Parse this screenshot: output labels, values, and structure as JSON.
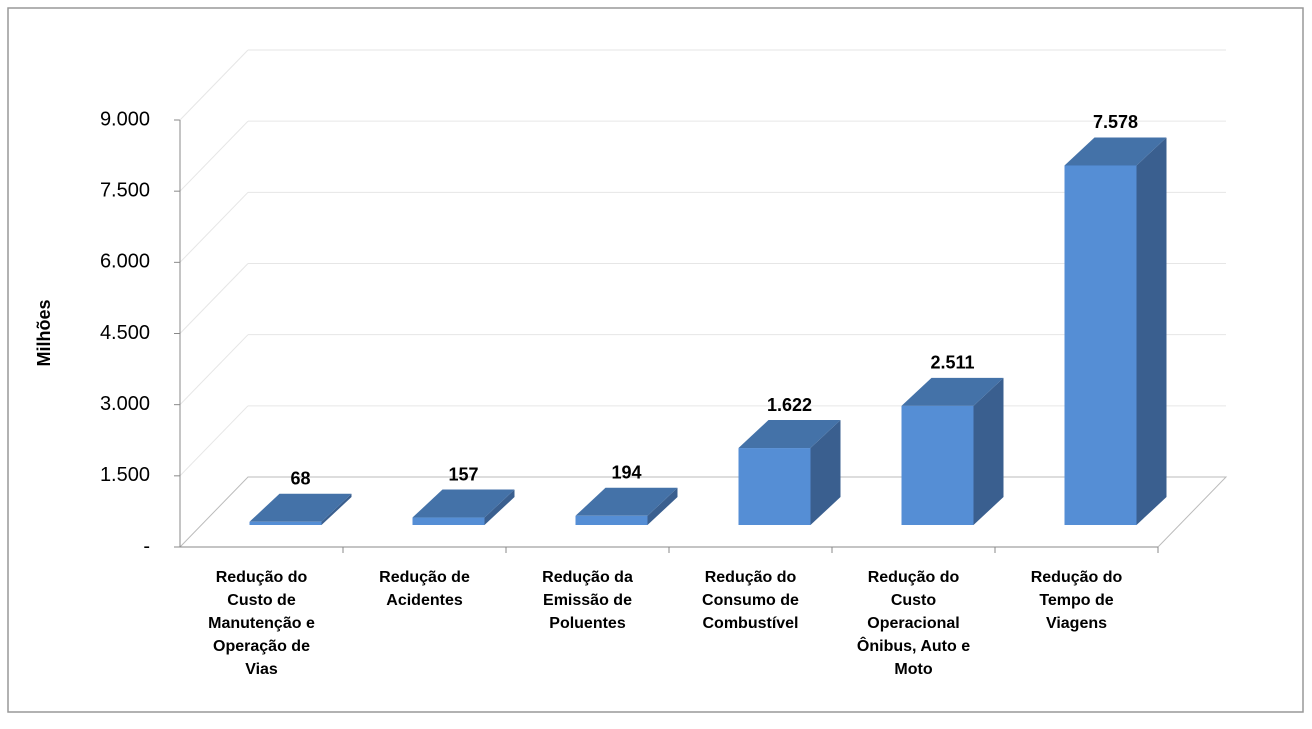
{
  "chart_data": {
    "type": "bar3d",
    "ylabel": "Milhões",
    "categories": [
      [
        "Redução do",
        "Custo de",
        "Manutenção e",
        "Operação de",
        "Vias"
      ],
      [
        "Redução de",
        "Acidentes"
      ],
      [
        "Redução da",
        "Emissão de",
        "Poluentes"
      ],
      [
        "Redução do",
        "Consumo de",
        "Combustível"
      ],
      [
        "Redução do",
        "Custo",
        "Operacional",
        "Ônibus, Auto e",
        "Moto"
      ],
      [
        "Redução do",
        "Tempo de",
        "Viagens"
      ]
    ],
    "values": [
      68,
      157,
      194,
      1622,
      2511,
      7578
    ],
    "value_labels": [
      "68",
      "157",
      "194",
      "1.622",
      "2.511",
      "7.578"
    ],
    "color": "#558ed5",
    "ylim": [
      0,
      9000
    ],
    "yticks": [
      {
        "value": 0,
        "label": "-"
      },
      {
        "value": 1500,
        "label": "1.500"
      },
      {
        "value": 3000,
        "label": "3.000"
      },
      {
        "value": 4500,
        "label": "4.500"
      },
      {
        "value": 6000,
        "label": "6.000"
      },
      {
        "value": 7500,
        "label": "7.500"
      },
      {
        "value": 9000,
        "label": "9.000"
      }
    ],
    "grid": true
  }
}
